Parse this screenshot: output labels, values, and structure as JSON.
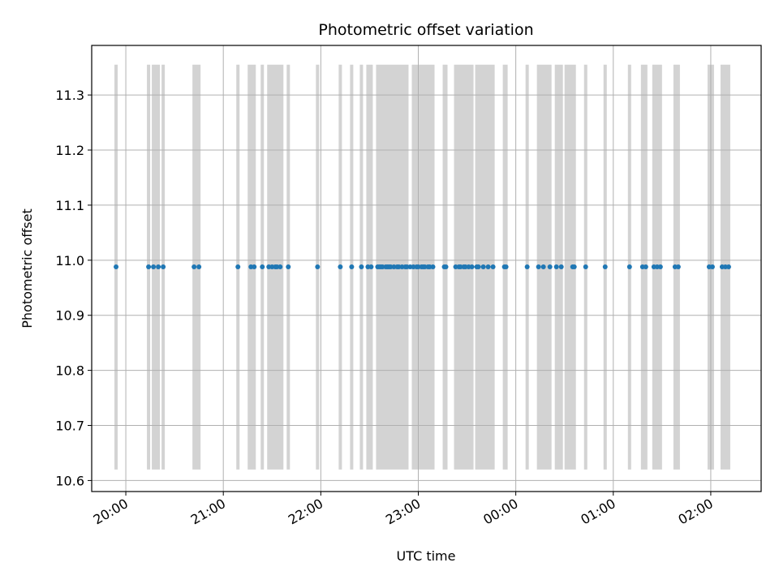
{
  "chart_data": {
    "type": "scatter",
    "title": "Photometric offset variation",
    "xlabel": "UTC time",
    "ylabel": "Photometric offset",
    "grid": true,
    "x_axis_kind": "time",
    "xlim": [
      "19:39",
      "02:31"
    ],
    "ylim": [
      10.58,
      11.39
    ],
    "x_ticks": [
      "20:00",
      "21:00",
      "22:00",
      "23:00",
      "00:00",
      "01:00",
      "02:00"
    ],
    "y_ticks": [
      "10.6",
      "10.7",
      "10.8",
      "10.9",
      "11.0",
      "11.1",
      "11.2",
      "11.3"
    ],
    "point_color": "#1f77b4",
    "band_color": "#d3d3d3",
    "band_range": [
      10.62,
      11.355
    ],
    "series": [
      {
        "values_x": [
          "19:54",
          "20:14",
          "20:17",
          "20:20",
          "20:23",
          "20:42",
          "20:45",
          "21:09",
          "21:17",
          "21:19",
          "21:24",
          "21:28",
          "21:30",
          "21:32",
          "21:33",
          "21:35",
          "21:40",
          "21:58",
          "22:12",
          "22:19",
          "22:25",
          "22:29",
          "22:31",
          "22:35",
          "22:36",
          "22:37",
          "22:38",
          "22:40",
          "22:41",
          "22:42",
          "22:43",
          "22:45",
          "22:47",
          "22:48",
          "22:50",
          "22:52",
          "22:53",
          "22:55",
          "22:57",
          "22:59",
          "23:00",
          "23:02",
          "23:03",
          "23:04",
          "23:06",
          "23:07",
          "23:09",
          "23:16",
          "23:17",
          "23:23",
          "23:25",
          "23:26",
          "23:28",
          "23:29",
          "23:31",
          "23:33",
          "23:36",
          "23:37",
          "23:40",
          "23:43",
          "23:46",
          "23:53",
          "23:54",
          "00:07",
          "00:14",
          "00:17",
          "00:21",
          "00:25",
          "00:28",
          "00:35",
          "00:36",
          "00:43",
          "00:55",
          "01:10",
          "01:18",
          "01:20",
          "01:25",
          "01:27",
          "01:29",
          "01:38",
          "01:40",
          "01:59",
          "02:01",
          "02:07",
          "02:09",
          "02:11"
        ],
        "values_y": [
          10.988,
          10.988,
          10.988,
          10.988,
          10.988,
          10.988,
          10.988,
          10.988,
          10.988,
          10.988,
          10.988,
          10.988,
          10.988,
          10.988,
          10.988,
          10.988,
          10.988,
          10.988,
          10.988,
          10.988,
          10.988,
          10.988,
          10.988,
          10.988,
          10.988,
          10.988,
          10.988,
          10.988,
          10.988,
          10.988,
          10.988,
          10.988,
          10.988,
          10.988,
          10.988,
          10.988,
          10.988,
          10.988,
          10.988,
          10.988,
          10.988,
          10.988,
          10.988,
          10.988,
          10.988,
          10.988,
          10.988,
          10.988,
          10.988,
          10.988,
          10.988,
          10.988,
          10.988,
          10.988,
          10.988,
          10.988,
          10.988,
          10.988,
          10.988,
          10.988,
          10.988,
          10.988,
          10.988,
          10.988,
          10.988,
          10.988,
          10.988,
          10.988,
          10.988,
          10.988,
          10.988,
          10.988,
          10.988,
          10.988,
          10.988,
          10.988,
          10.988,
          10.988,
          10.988,
          10.988,
          10.988,
          10.988,
          10.988,
          10.988,
          10.988,
          10.988
        ]
      }
    ],
    "bands": [
      [
        "19:53",
        "19:55"
      ],
      [
        "20:13",
        "20:15"
      ],
      [
        "20:16",
        "20:21"
      ],
      [
        "20:22",
        "20:24"
      ],
      [
        "20:41",
        "20:46"
      ],
      [
        "21:08",
        "21:10"
      ],
      [
        "21:15",
        "21:20"
      ],
      [
        "21:23",
        "21:25"
      ],
      [
        "21:27",
        "21:37"
      ],
      [
        "21:39",
        "21:41"
      ],
      [
        "21:57",
        "21:59"
      ],
      [
        "22:11",
        "22:13"
      ],
      [
        "22:18",
        "22:20"
      ],
      [
        "22:24",
        "22:26"
      ],
      [
        "22:28",
        "22:32"
      ],
      [
        "22:34",
        "22:54"
      ],
      [
        "22:56",
        "23:10"
      ],
      [
        "23:15",
        "23:18"
      ],
      [
        "23:22",
        "23:34"
      ],
      [
        "23:35",
        "23:47"
      ],
      [
        "23:52",
        "23:55"
      ],
      [
        "00:06",
        "00:08"
      ],
      [
        "00:13",
        "00:22"
      ],
      [
        "00:24",
        "00:29"
      ],
      [
        "00:30",
        "00:37"
      ],
      [
        "00:42",
        "00:44"
      ],
      [
        "00:54",
        "00:56"
      ],
      [
        "01:09",
        "01:11"
      ],
      [
        "01:17",
        "01:21"
      ],
      [
        "01:24",
        "01:30"
      ],
      [
        "01:37",
        "01:41"
      ],
      [
        "01:58",
        "02:02"
      ],
      [
        "02:06",
        "02:12"
      ]
    ]
  }
}
